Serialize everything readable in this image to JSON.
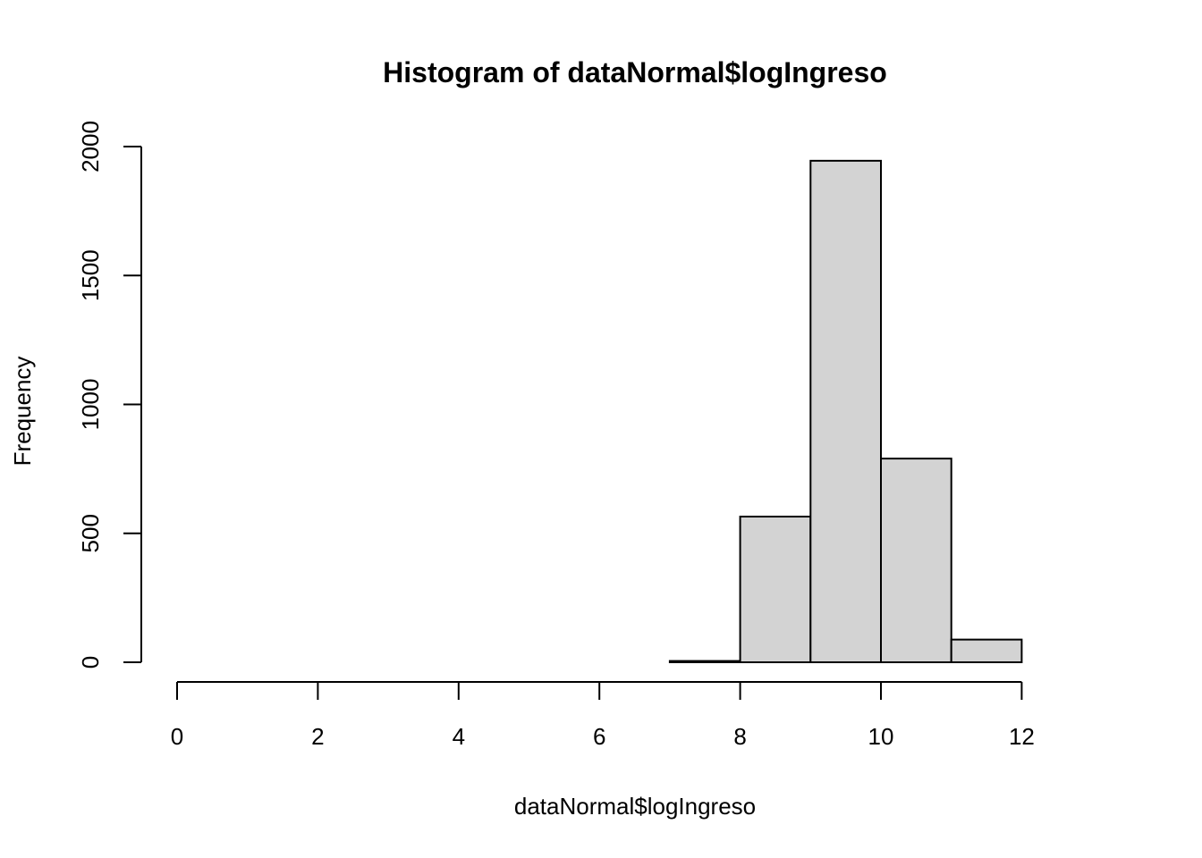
{
  "chart_data": {
    "type": "bar",
    "title": "Histogram of dataNormal$logIngreso",
    "xlabel": "dataNormal$logIngreso",
    "ylabel": "Frequency",
    "xlim": [
      0,
      13
    ],
    "ylim": [
      0,
      2000
    ],
    "x_ticks": [
      "0",
      "2",
      "4",
      "6",
      "8",
      "10",
      "12"
    ],
    "y_ticks": [
      "0",
      "500",
      "1000",
      "1500",
      "2000"
    ],
    "bins": [
      {
        "x0": 0,
        "x1": 1,
        "value": 0
      },
      {
        "x0": 1,
        "x1": 2,
        "value": 0
      },
      {
        "x0": 2,
        "x1": 3,
        "value": 0
      },
      {
        "x0": 3,
        "x1": 4,
        "value": 0
      },
      {
        "x0": 4,
        "x1": 5,
        "value": 0
      },
      {
        "x0": 5,
        "x1": 6,
        "value": 0
      },
      {
        "x0": 6,
        "x1": 7,
        "value": 0
      },
      {
        "x0": 7,
        "x1": 8,
        "value": 5
      },
      {
        "x0": 8,
        "x1": 9,
        "value": 565
      },
      {
        "x0": 9,
        "x1": 10,
        "value": 1945
      },
      {
        "x0": 10,
        "x1": 11,
        "value": 790
      },
      {
        "x0": 11,
        "x1": 12,
        "value": 88
      },
      {
        "x0": 12,
        "x1": 13,
        "value": 0
      }
    ],
    "colors": {
      "bar_fill": "#d3d3d3",
      "bar_stroke": "#000000"
    },
    "grid": false,
    "legend": "none"
  }
}
